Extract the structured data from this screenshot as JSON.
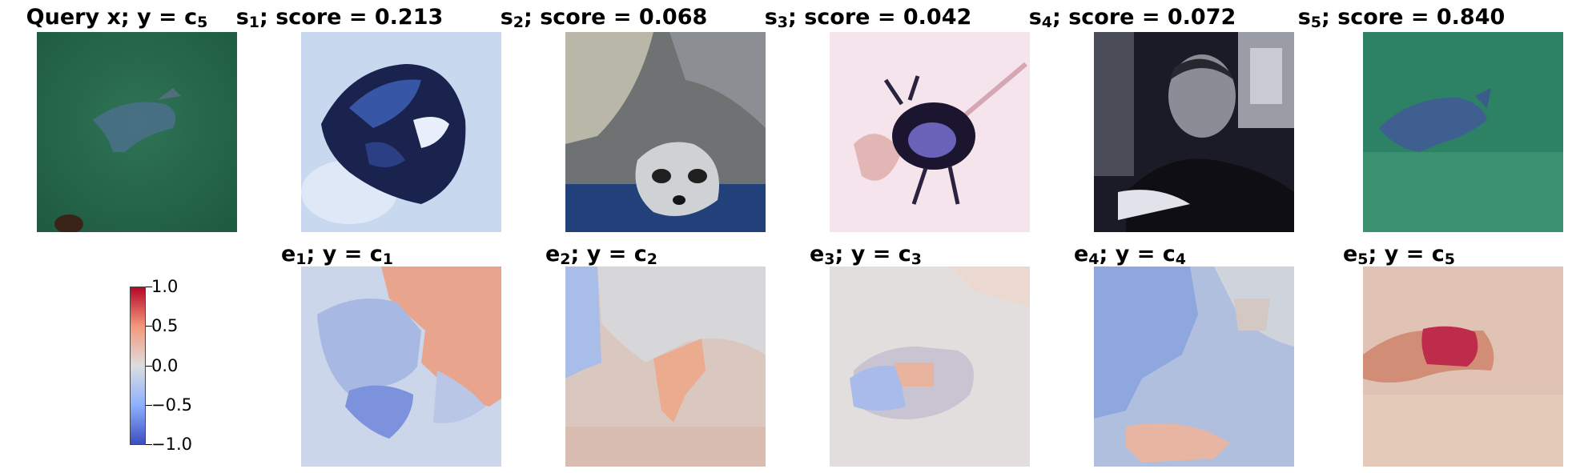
{
  "top_row": [
    {
      "label": "Query x; ",
      "y_label": "y",
      "eq": " = ",
      "c_sym": "c",
      "c_sub": "5"
    },
    {
      "sym": "s",
      "sub": "1",
      "score_text": "; score = ",
      "score": "0.213"
    },
    {
      "sym": "s",
      "sub": "2",
      "score_text": "; score = ",
      "score": "0.068"
    },
    {
      "sym": "s",
      "sub": "3",
      "score_text": "; score = ",
      "score": "0.042"
    },
    {
      "sym": "s",
      "sub": "4",
      "score_text": "; score = ",
      "score": "0.072"
    },
    {
      "sym": "s",
      "sub": "5",
      "score_text": "; score = ",
      "score": "0.840"
    }
  ],
  "bottom_row": [
    {
      "sym": "e",
      "sub": "1",
      "mid": "; y = ",
      "c_sym": "c",
      "c_sub": "1"
    },
    {
      "sym": "e",
      "sub": "2",
      "mid": "; y = ",
      "c_sym": "c",
      "c_sub": "2"
    },
    {
      "sym": "e",
      "sub": "3",
      "mid": "; y = ",
      "c_sym": "c",
      "c_sub": "3"
    },
    {
      "sym": "e",
      "sub": "4",
      "mid": "; y = ",
      "c_sym": "c",
      "c_sub": "4"
    },
    {
      "sym": "e",
      "sub": "5",
      "mid": "; y = ",
      "c_sym": "c",
      "c_sub": "5"
    }
  ],
  "colorbar": {
    "ticks": [
      "1.0",
      "0.5",
      "0.0",
      "−0.5",
      "−1.0"
    ],
    "colormap": [
      "#3b4cc0",
      "#8db0fe",
      "#dddddd",
      "#f4987a",
      "#b40426"
    ]
  }
}
